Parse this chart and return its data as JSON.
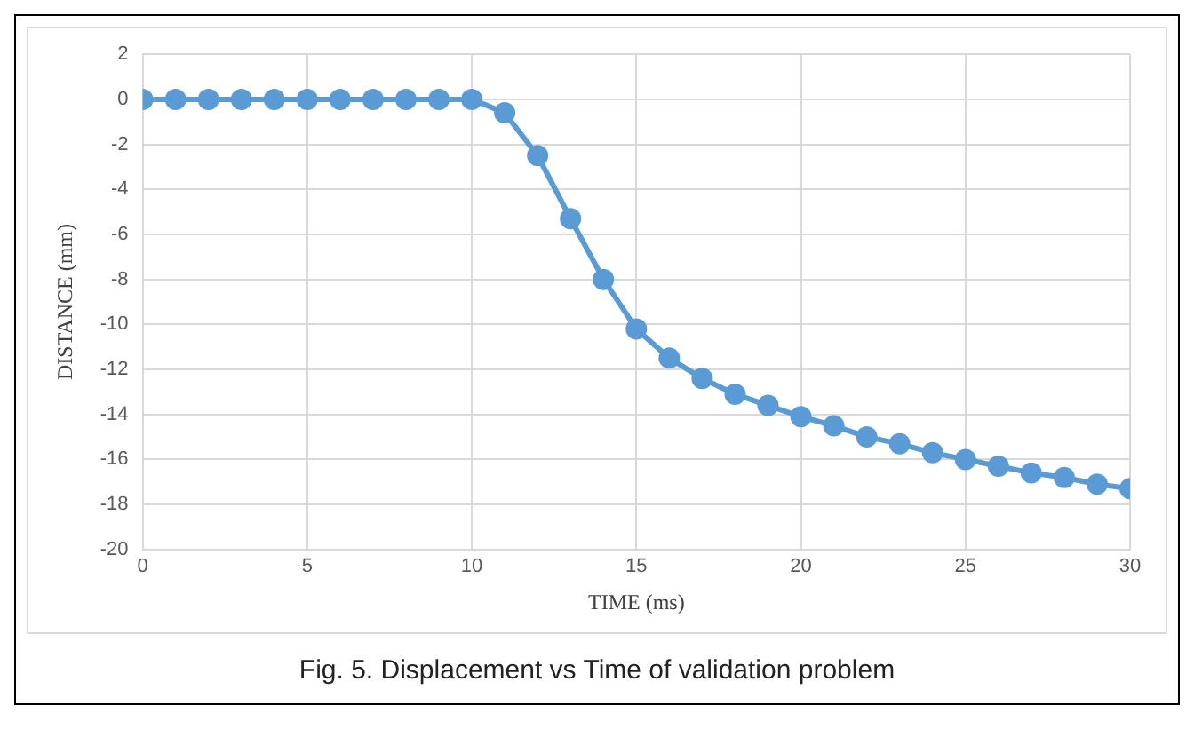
{
  "chart_data": {
    "type": "line",
    "xlabel": "TIME (ms)",
    "ylabel": "DISTANCE (mm)",
    "annotations": [
      "Fig. 5. Displacement vs Time of validation problem"
    ],
    "x": [
      0,
      1,
      2,
      3,
      4,
      5,
      6,
      7,
      8,
      9,
      10,
      11,
      12,
      13,
      14,
      15,
      16,
      17,
      18,
      19,
      20,
      21,
      22,
      23,
      24,
      25,
      26,
      27,
      28,
      29,
      30
    ],
    "series": [
      {
        "color": "#5b9bd5",
        "values": [
          0,
          0,
          0,
          0,
          0,
          0,
          0,
          0,
          0,
          0,
          0,
          -0.6,
          -2.5,
          -5.3,
          -8.0,
          -10.2,
          -11.5,
          -12.4,
          -13.1,
          -13.6,
          -14.1,
          -14.5,
          -15.0,
          -15.3,
          -15.7,
          -16.0,
          -16.3,
          -16.6,
          -16.8,
          -17.1,
          -17.3
        ]
      }
    ],
    "xlim": [
      0,
      30
    ],
    "xticks": [
      0,
      5,
      10,
      15,
      20,
      25,
      30
    ],
    "ylim": [
      -20,
      2
    ],
    "yticks": [
      -20,
      -18,
      -16,
      -14,
      -12,
      -10,
      -8,
      -6,
      -4,
      -2,
      0,
      2
    ],
    "grid": true,
    "marker": "circle",
    "line_style": "solid",
    "legend": false
  }
}
